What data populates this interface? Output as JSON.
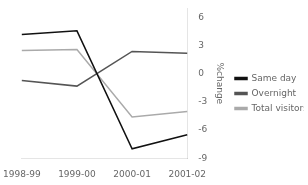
{
  "chart_data": {
    "type": "line",
    "categories": [
      "1998-99",
      "1999-00",
      "2000-01",
      "2001-02"
    ],
    "series": [
      {
        "name": "Same day",
        "color": "#111111",
        "values": [
          4.2,
          4.6,
          -8.0,
          -6.5
        ]
      },
      {
        "name": "Overnight",
        "color": "#555555",
        "values": [
          -0.7,
          -1.3,
          2.4,
          2.2
        ]
      },
      {
        "name": "Total visitors",
        "color": "#aaaaaa",
        "values": [
          2.5,
          2.6,
          -4.6,
          -4.0
        ]
      }
    ],
    "ylabel": "%change",
    "ylim": [
      -9,
      7
    ],
    "yticks": [
      -9,
      -6,
      -3,
      0,
      3,
      6
    ],
    "grid": false,
    "legend": "right"
  }
}
